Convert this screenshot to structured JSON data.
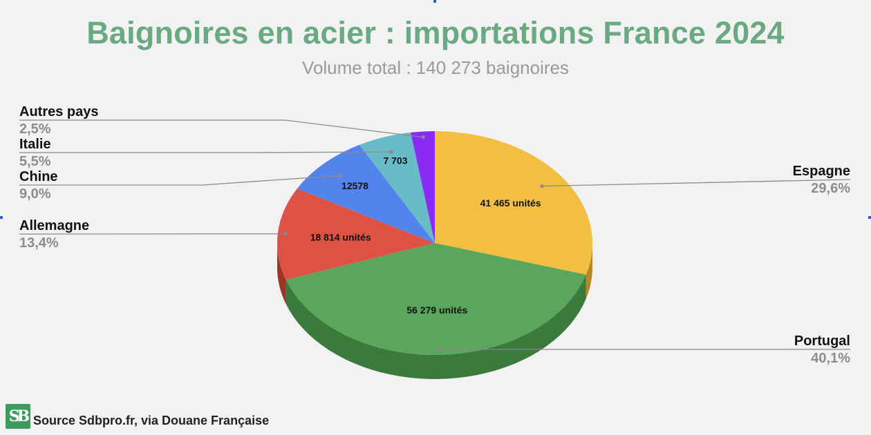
{
  "header": {
    "title": "Baignoires en acier : importations France 2024",
    "subtitle": "Volume total : 140 273 baignoires"
  },
  "footer": {
    "source": "Source Sdbpro.fr, via Douane Française",
    "logo_text": "SB"
  },
  "chart_data": {
    "type": "pie",
    "title": "Baignoires en acier : importations France 2024",
    "subtitle": "Volume total : 140 273 baignoires",
    "total": 140273,
    "slices": [
      {
        "name": "Espagne",
        "value": 41465,
        "percent": "29,6%",
        "label": "41 465 unités",
        "color": "#f2bf42",
        "side_color": "#b58a26",
        "legend_side": "right"
      },
      {
        "name": "Portugal",
        "value": 56279,
        "percent": "40,1%",
        "label": "56 279 unités",
        "color": "#5aa65c",
        "side_color": "#3a7a3c",
        "legend_side": "right"
      },
      {
        "name": "Allemagne",
        "value": 18814,
        "percent": "13,4%",
        "label": "18 814 unités",
        "color": "#de5244",
        "side_color": "#9e3328",
        "legend_side": "left"
      },
      {
        "name": "Chine",
        "value": 12578,
        "percent": "9,0%",
        "label": "12578",
        "color": "#5384ee",
        "side_color": "#365db0",
        "legend_side": "left"
      },
      {
        "name": "Italie",
        "value": 7703,
        "percent": "5,5%",
        "label": "7 703",
        "color": "#68bcc8",
        "side_color": "#4a8c95",
        "legend_side": "left"
      },
      {
        "name": "Autres pays",
        "value": 3434,
        "percent": "2,5%",
        "label": "",
        "color": "#8a2bf5",
        "side_color": "#6018b0",
        "legend_side": "left"
      }
    ],
    "style": "3d-pie",
    "legend": "outside-callouts"
  }
}
